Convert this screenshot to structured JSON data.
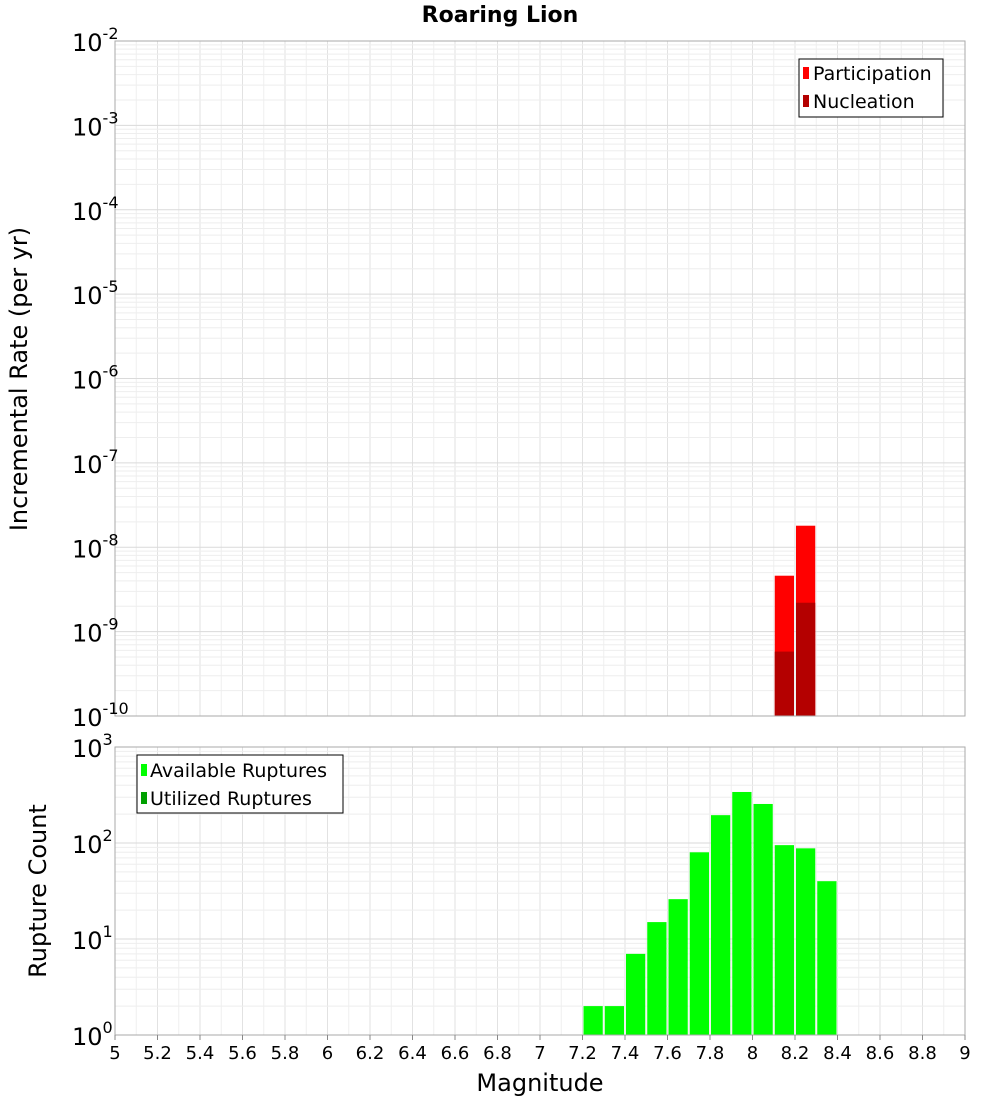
{
  "title": "Roaring Lion",
  "chart_data": [
    {
      "type": "bar",
      "ylabel": "Incremental Rate (per yr)",
      "yscale": "log",
      "ylim_exp": [
        -10,
        -2
      ],
      "xlim": [
        5,
        9
      ],
      "grid": true,
      "legend_position": "top-right",
      "series": [
        {
          "name": "Participation",
          "color": "#ff0000",
          "x": [
            8.15,
            8.25
          ],
          "values": [
            4.6e-09,
            1.8e-08
          ]
        },
        {
          "name": "Nucleation",
          "color": "#b40000",
          "x": [
            8.15,
            8.25
          ],
          "values": [
            5.8e-10,
            2.2e-09
          ]
        }
      ]
    },
    {
      "type": "bar",
      "ylabel": "Rupture Count",
      "xlabel": "Magnitude",
      "yscale": "log",
      "ylim_exp": [
        0,
        3
      ],
      "xlim": [
        5,
        9
      ],
      "grid": true,
      "legend_position": "top-left",
      "x_ticks": [
        "5",
        "5.2",
        "5.4",
        "5.6",
        "5.8",
        "6",
        "6.2",
        "6.4",
        "6.6",
        "6.8",
        "7",
        "7.2",
        "7.4",
        "7.6",
        "7.8",
        "8",
        "8.2",
        "8.4",
        "8.6",
        "8.8",
        "9"
      ],
      "series": [
        {
          "name": "Available Ruptures",
          "color": "#00ff00",
          "x": [
            7.25,
            7.35,
            7.45,
            7.55,
            7.65,
            7.75,
            7.85,
            7.95,
            8.05,
            8.15,
            8.25,
            8.35
          ],
          "values": [
            2,
            2,
            7,
            15,
            26,
            80,
            195,
            340,
            255,
            95,
            88,
            40
          ]
        },
        {
          "name": "Utilized Ruptures",
          "color": "#00a000",
          "x": [
            7.45,
            8.05,
            8.15,
            8.25
          ],
          "values": [
            1,
            1,
            1,
            1
          ]
        }
      ]
    }
  ]
}
